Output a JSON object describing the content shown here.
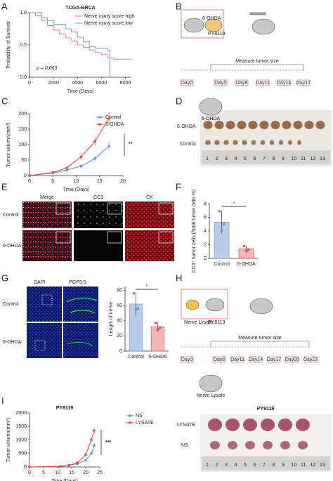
{
  "panel_labels": [
    "A",
    "B",
    "C",
    "D",
    "E",
    "F",
    "G",
    "H",
    "I"
  ],
  "chart_data": [
    {
      "type": "line",
      "title": "TCGA-BRCA",
      "xlabel": "Time (Days)",
      "ylabel": "Probability of Survival",
      "xlim": [
        0,
        8500
      ],
      "xticks": [
        0,
        2000,
        4000,
        6000,
        8000
      ],
      "ylim": [
        0,
        1.0
      ],
      "yticks": [
        {
          "value": 0,
          "label": "0.0"
        },
        {
          "value": 0.5,
          "label": "0.5"
        },
        {
          "value": 1,
          "label": "1.0"
        }
      ],
      "step": true,
      "legend": "upper right",
      "annotation": "p = 0.063",
      "series": [
        {
          "name": "Nerve injury score high",
          "color": "#e8839a",
          "x": [
            0,
            500,
            1000,
            1500,
            2000,
            2500,
            3000,
            3500,
            4000,
            4500,
            5000,
            5500,
            6000,
            6500,
            7000,
            8000,
            8500
          ],
          "values": [
            1,
            0.95,
            0.88,
            0.8,
            0.73,
            0.67,
            0.61,
            0.56,
            0.5,
            0.46,
            0.42,
            0.38,
            0.35,
            0.3,
            0.28,
            0.28,
            0.26
          ]
        },
        {
          "name": "Nerve injury score low",
          "color": "#7b9fd6",
          "x": [
            0,
            1000,
            1500,
            2000,
            3000,
            3500,
            4000,
            4500,
            5000,
            5500,
            6500,
            6700
          ],
          "values": [
            1,
            0.92,
            0.88,
            0.82,
            0.75,
            0.7,
            0.62,
            0.55,
            0.47,
            0.45,
            0.42,
            0
          ]
        }
      ]
    },
    {
      "type": "line",
      "xlabel": "Time (Days)",
      "ylabel": "Tumor volumn(mm³)",
      "xlim": [
        0,
        20
      ],
      "xticks": [
        0,
        5,
        10,
        15,
        20
      ],
      "ylim": [
        0,
        200
      ],
      "yticks": [
        0,
        50,
        100,
        150,
        200
      ],
      "markers": true,
      "legend": "upper right",
      "annotation": "**",
      "series": [
        {
          "name": "Control",
          "color": "#6e8fd6",
          "x": [
            0,
            5,
            8,
            11,
            14,
            17
          ],
          "values": [
            0,
            8,
            18,
            30,
            55,
            95
          ],
          "errors": [
            0,
            2,
            4,
            6,
            8,
            12
          ]
        },
        {
          "name": "6-OHDA",
          "color": "#e04c4c",
          "x": [
            0,
            5,
            8,
            11,
            14,
            17
          ],
          "values": [
            0,
            10,
            25,
            60,
            110,
            185
          ],
          "errors": [
            0,
            3,
            5,
            10,
            15,
            20
          ]
        }
      ]
    },
    {
      "type": "bar",
      "ylabel": "CC3⁺ tumor cells (/total tumor cells %)",
      "categories": [
        "Control",
        "6-OHDA"
      ],
      "values": [
        5.3,
        1.4
      ],
      "errors": [
        1.7,
        0.5
      ],
      "points": [
        [
          6.9,
          4.0,
          5.0
        ],
        [
          1.8,
          1.1,
          1.3
        ]
      ],
      "colors": [
        "#b8cde8",
        "#f4b6b6"
      ],
      "ylim": [
        0,
        8
      ],
      "yticks": [
        0,
        2,
        4,
        6,
        8
      ],
      "annotation": "*"
    },
    {
      "type": "bar",
      "ylabel": "Length of nerve",
      "categories": [
        "Control",
        "6-OHDA"
      ],
      "values": [
        62,
        32
      ],
      "errors": [
        15,
        6
      ],
      "points": [
        [
          76,
          55,
          56
        ],
        [
          37,
          28,
          31
        ]
      ],
      "colors": [
        "#b8cde8",
        "#f4b6b6"
      ],
      "ylim": [
        0,
        85
      ],
      "yticks": [
        0,
        20,
        40,
        60,
        80
      ],
      "annotation": "*"
    },
    {
      "type": "line",
      "title": "PY8119",
      "xlabel": "Time (Days)",
      "ylabel": "Tumor volumn(mm³)",
      "xlim": [
        0,
        25
      ],
      "xticks": [
        0,
        5,
        10,
        15,
        20,
        25
      ],
      "ylim": [
        0,
        2000
      ],
      "yticks": [
        0,
        500,
        1000,
        1500,
        2000
      ],
      "markers": true,
      "legend": "right",
      "annotation": "***",
      "series": [
        {
          "name": "NS",
          "color": "#6e8fd6",
          "x": [
            0,
            11,
            14,
            17,
            20,
            22,
            23
          ],
          "values": [
            0,
            20,
            60,
            120,
            250,
            500,
            800
          ],
          "errors": [
            0,
            5,
            10,
            20,
            30,
            50,
            80
          ]
        },
        {
          "name": "LYSATE",
          "color": "#e04c4c",
          "x": [
            0,
            11,
            14,
            17,
            20,
            22,
            23
          ],
          "values": [
            0,
            20,
            60,
            150,
            450,
            1000,
            1350
          ],
          "errors": [
            0,
            5,
            10,
            20,
            40,
            80,
            100
          ]
        }
      ]
    }
  ],
  "diagram_b": {
    "mouse_labels": [
      "6-OHDA",
      "PY8119"
    ],
    "timeline_title": "Measure tumor size",
    "days": [
      "Day0",
      "Day5",
      "Day8",
      "Day11",
      "Day14",
      "Day17"
    ],
    "bottom_mouse_label": "6-OHDA"
  },
  "photo_d": {
    "row_labels": [
      "6-OHDA",
      "Control"
    ],
    "ruler_numbers": [
      "1",
      "2",
      "3",
      "4",
      "5",
      "6",
      "7",
      "8",
      "9",
      "10",
      "11",
      "12",
      "13"
    ]
  },
  "image_e": {
    "column_labels": [
      "Merge",
      "CC3",
      "CK"
    ],
    "row_labels": [
      "Control",
      "6-OHDA"
    ]
  },
  "image_f": {
    "column_labels": [
      "DAPI",
      "PGP9.5"
    ],
    "row_labels": [
      "Control",
      "6-OHDA"
    ]
  },
  "diagram_g": {
    "lysate_label": "Nerve Lysate",
    "cell_label": "PY8119",
    "timeline_title": "Measure tumor size",
    "days": [
      "Day0",
      "Day8",
      "Day11",
      "Day14",
      "Day17",
      "Day20",
      "Day23"
    ],
    "bottom_mouse_label": "Nerve Lysate"
  },
  "photo_i": {
    "title": "PY8119",
    "row_labels": [
      "LYSATE",
      "NS"
    ],
    "ruler_numbers": [
      "1",
      "2",
      "3",
      "4",
      "5",
      "6",
      "7",
      "8",
      "9",
      "10",
      "11",
      "12",
      "13"
    ]
  }
}
